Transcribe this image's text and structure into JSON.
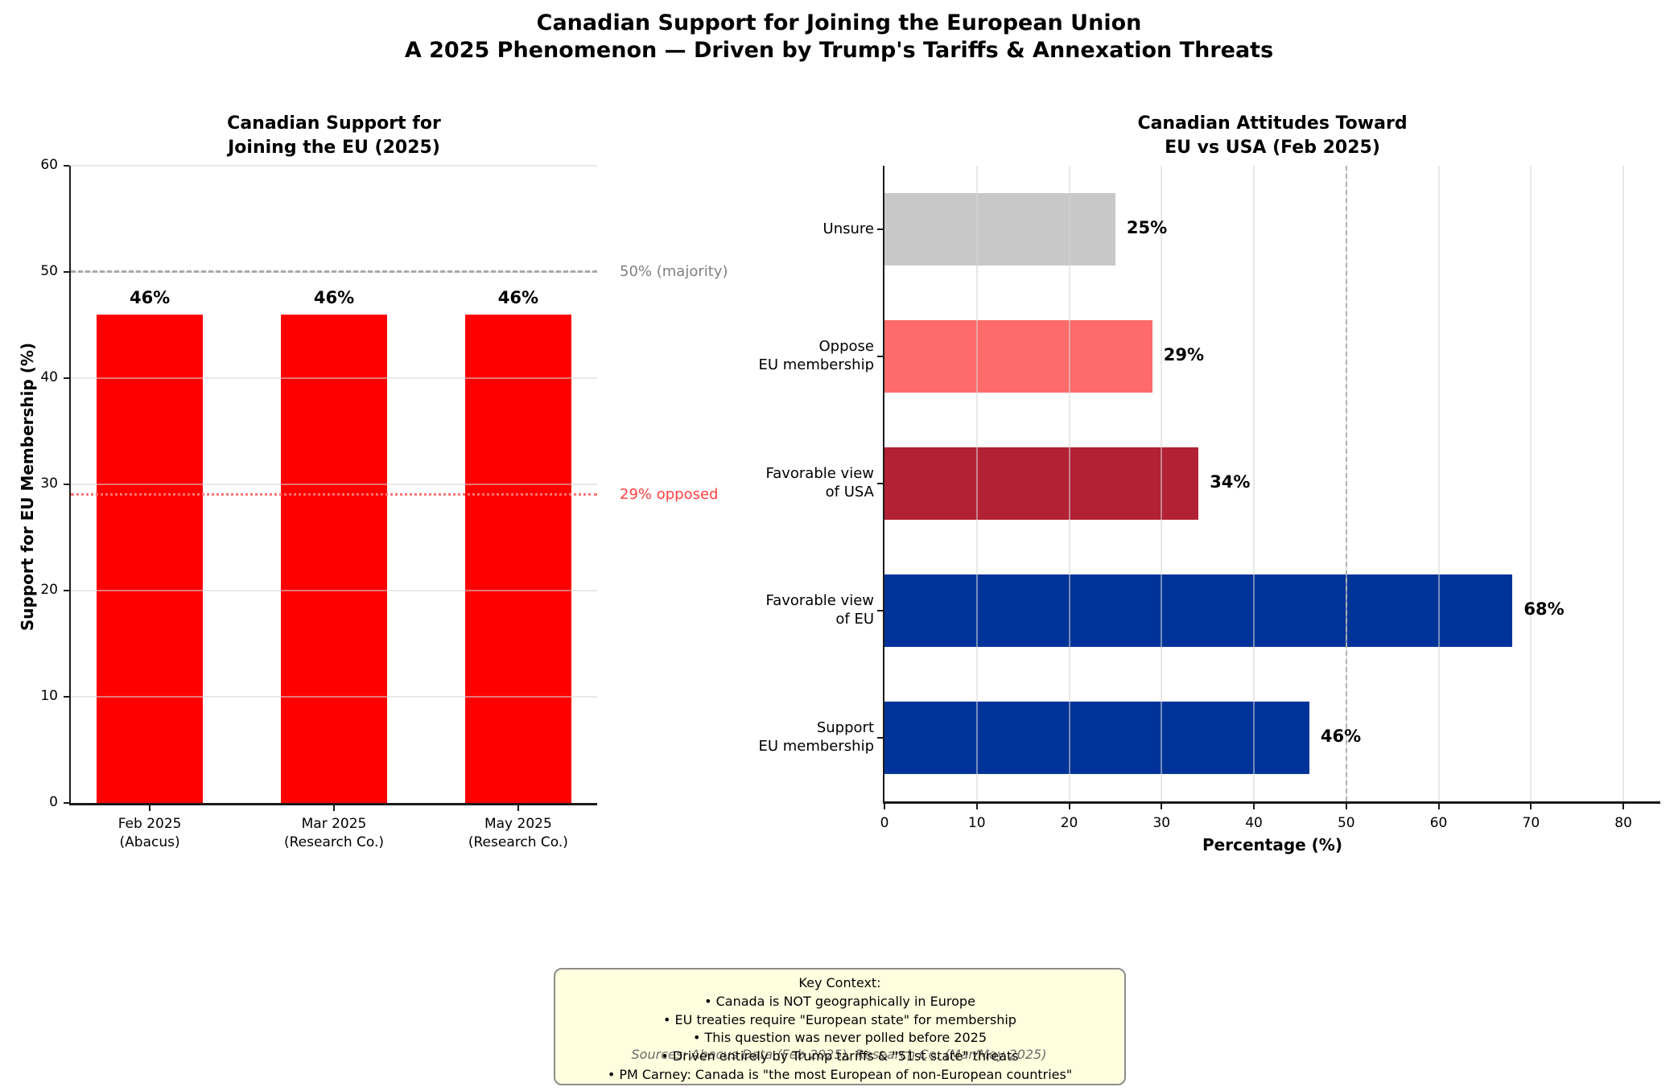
{
  "header": {
    "title_line1": "Canadian Support for Joining the European Union",
    "title_line2": "A 2025 Phenomenon — Driven by Trump's Tariffs & Annexation Threats"
  },
  "chart_data": [
    {
      "type": "bar",
      "title_lines": [
        "Canadian Support for",
        "Joining the EU (2025)"
      ],
      "categories": [
        "Feb 2025 (Abacus)",
        "Mar 2025 (Research Co.)",
        "May 2025 (Research Co.)"
      ],
      "category_lines": [
        [
          "Feb 2025",
          "(Abacus)"
        ],
        [
          "Mar 2025",
          "(Research Co.)"
        ],
        [
          "May 2025",
          "(Research Co.)"
        ]
      ],
      "values": [
        46,
        46,
        46
      ],
      "bar_labels": [
        "46%",
        "46%",
        "46%"
      ],
      "bar_color": "#FF0000",
      "ylabel": "Support for EU Membership (%)",
      "ylim": [
        0,
        60
      ],
      "yticks": [
        0,
        10,
        20,
        30,
        40,
        50,
        60
      ],
      "grid": "horizontal",
      "legend": "none",
      "reference_lines": [
        {
          "value": 50,
          "style": "dashed",
          "color": "#A9A9A9",
          "label": "50% (majority)",
          "label_color": "#808080"
        },
        {
          "value": 29,
          "style": "dotted",
          "color": "#FF7373",
          "label": "29% opposed",
          "label_color": "#FF4040"
        }
      ]
    },
    {
      "type": "bar-horizontal",
      "title_lines": [
        "Canadian Attitudes Toward",
        "EU vs USA (Feb 2025)"
      ],
      "categories": [
        "Unsure",
        "Oppose EU membership",
        "Favorable view of USA",
        "Favorable view of EU",
        "Support EU membership"
      ],
      "category_lines": [
        [
          "Unsure"
        ],
        [
          "Oppose",
          "EU membership"
        ],
        [
          "Favorable view",
          "of USA"
        ],
        [
          "Favorable view",
          "of EU"
        ],
        [
          "Support",
          "EU membership"
        ]
      ],
      "values": [
        25,
        29,
        34,
        68,
        46
      ],
      "bar_labels": [
        "25%",
        "29%",
        "34%",
        "68%",
        "46%"
      ],
      "colors": [
        "#C8C8C8",
        "#FF6B6B",
        "#B22234",
        "#003399",
        "#003399"
      ],
      "xlabel": "Percentage (%)",
      "xlim": [
        0,
        84
      ],
      "xticks": [
        0,
        10,
        20,
        30,
        40,
        50,
        60,
        70,
        80
      ],
      "grid": "vertical",
      "legend": "none",
      "reference_lines": [
        {
          "value": 50,
          "style": "dashed",
          "color": "#B0B0B0"
        }
      ]
    }
  ],
  "context_box": {
    "heading": "Key Context:",
    "bullets": [
      "• Canada is NOT geographically in Europe",
      "• EU treaties require \"European state\" for membership",
      "• This question was never polled before 2025",
      "• Driven entirely by Trump tariffs & \"51st state\" threats",
      "• PM Carney: Canada is \"the most European of non-European countries\""
    ]
  },
  "source_note": "Sources: Abacus Data (Feb 2025), Research Co. (Mar/May 2025)"
}
